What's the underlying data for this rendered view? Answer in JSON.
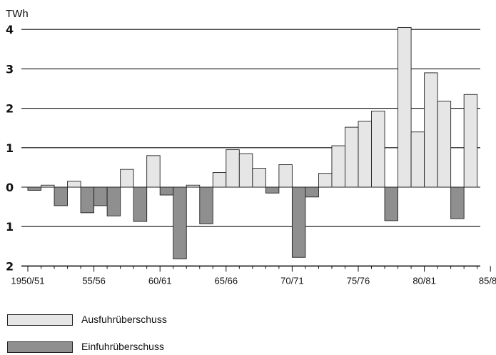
{
  "chart_data": {
    "type": "bar",
    "unit_label": "TWh",
    "y_tick_labels": [
      {
        "value": 4,
        "label": "4"
      },
      {
        "value": 3,
        "label": "3"
      },
      {
        "value": 2,
        "label": "2"
      },
      {
        "value": 1,
        "label": "1"
      },
      {
        "value": 0,
        "label": "0"
      },
      {
        "value": -1,
        "label": "1"
      },
      {
        "value": -2,
        "label": "2"
      }
    ],
    "ylim": [
      -2,
      4
    ],
    "grid": true,
    "x_tick_labels": [
      "1950/51",
      "55/56",
      "60/61",
      "65/66",
      "70/71",
      "75/76",
      "80/81",
      "85/86"
    ],
    "categories": [
      "1950/51",
      "1951/52",
      "1952/53",
      "1953/54",
      "1954/55",
      "1955/56",
      "1956/57",
      "1957/58",
      "1958/59",
      "1959/60",
      "1960/61",
      "1961/62",
      "1962/63",
      "1963/64",
      "1964/65",
      "1965/66",
      "1966/67",
      "1967/68",
      "1968/69",
      "1969/70",
      "1970/71",
      "1971/72",
      "1972/73",
      "1973/74",
      "1974/75",
      "1975/76",
      "1976/77",
      "1977/78",
      "1978/79",
      "1979/80",
      "1980/81",
      "1981/82",
      "1982/83",
      "1983/84",
      "1984/85"
    ],
    "values": [
      -0.08,
      0.05,
      -0.47,
      0.15,
      -0.65,
      -0.47,
      -0.73,
      0.45,
      -0.87,
      0.8,
      -0.2,
      -1.82,
      0.05,
      -0.93,
      0.37,
      0.95,
      0.85,
      0.48,
      -0.15,
      0.57,
      -1.78,
      -0.25,
      0.35,
      1.05,
      1.52,
      1.67,
      1.93,
      -0.85,
      4.05,
      1.4,
      2.9,
      2.18,
      -0.8,
      2.35,
      null
    ],
    "series": [
      {
        "name": "Ausfuhrüberschuss",
        "color": "#e6e6e6",
        "sign": "positive"
      },
      {
        "name": "Einfuhrüberschuss",
        "color": "#8f8f8f",
        "sign": "negative"
      }
    ],
    "legend_position": "bottom-left"
  }
}
